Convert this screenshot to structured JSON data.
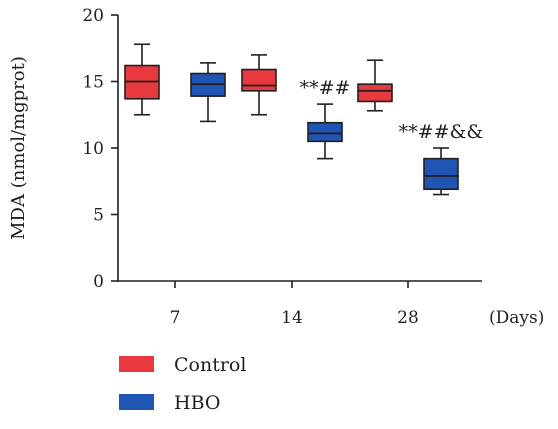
{
  "chart_data": {
    "type": "box",
    "ylabel": "MDA (nmol/mgprot)",
    "xlabel": "(Days)",
    "ylim": [
      0,
      20
    ],
    "yticks": [
      0,
      5,
      10,
      15,
      20
    ],
    "categories": [
      "7",
      "14",
      "28"
    ],
    "series": [
      {
        "name": "Control",
        "color": "#e8393e",
        "boxes": [
          {
            "min": 12.5,
            "q1": 13.7,
            "median": 15.0,
            "q3": 16.2,
            "max": 17.8
          },
          {
            "min": 12.5,
            "q1": 14.3,
            "median": 14.7,
            "q3": 15.9,
            "max": 17.0
          },
          {
            "min": 12.8,
            "q1": 13.5,
            "median": 14.3,
            "q3": 14.8,
            "max": 16.6
          }
        ]
      },
      {
        "name": "HBO",
        "color": "#1f56b3",
        "boxes": [
          {
            "min": 12.0,
            "q1": 13.9,
            "median": 14.8,
            "q3": 15.6,
            "max": 16.4
          },
          {
            "min": 9.2,
            "q1": 10.5,
            "median": 11.1,
            "q3": 11.9,
            "max": 13.3
          },
          {
            "min": 6.5,
            "q1": 6.9,
            "median": 7.9,
            "q3": 9.2,
            "max": 10.0
          }
        ]
      }
    ],
    "annotations": [
      {
        "category": "14",
        "series": "HBO",
        "text": "**##"
      },
      {
        "category": "28",
        "series": "HBO",
        "text": "**##&&"
      }
    ],
    "legend_position": "bottom-left"
  }
}
